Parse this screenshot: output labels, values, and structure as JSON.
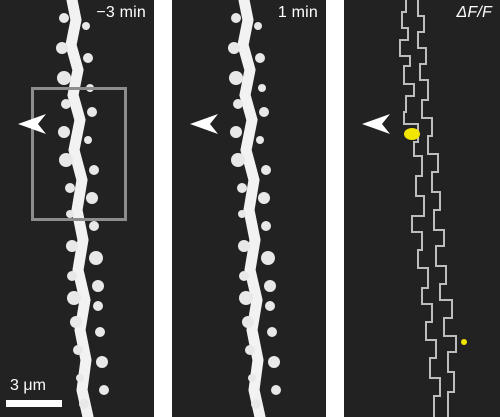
{
  "panels": [
    {
      "label": "−3 min"
    },
    {
      "label": "1 min"
    },
    {
      "label": "ΔF/F"
    }
  ],
  "scale_bar": {
    "label": "3 μm"
  },
  "colors": {
    "background": "#222222",
    "dendrite": "#f2f2f2",
    "outline": "#bdbdbd",
    "highlight": "#f2e600",
    "roi_box": "#8d8d8d",
    "arrow": "#ffffff"
  }
}
